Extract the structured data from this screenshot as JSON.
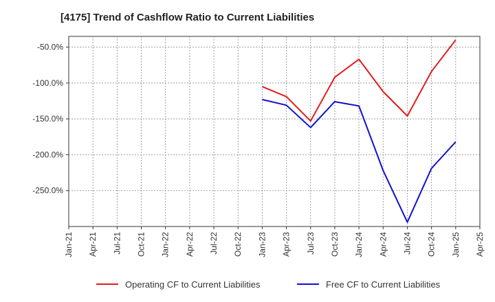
{
  "chart_data": {
    "type": "line",
    "title": "[4175]  Trend of Cashflow Ratio to Current Liabilities",
    "xlabel": "",
    "ylabel": "",
    "x_ticks": [
      "Jan-21",
      "Apr-21",
      "Jul-21",
      "Oct-21",
      "Jan-22",
      "Apr-22",
      "Jul-22",
      "Oct-22",
      "Jan-23",
      "Apr-23",
      "Jul-23",
      "Oct-23",
      "Jan-24",
      "Apr-24",
      "Jul-24",
      "Oct-24",
      "Jan-25",
      "Apr-25"
    ],
    "y_ticks": [
      -50,
      -100,
      -150,
      -200,
      -250
    ],
    "y_tick_labels": [
      "-50.0%",
      "-100.0%",
      "-150.0%",
      "-200.0%",
      "-250.0%"
    ],
    "ylim": [
      -300,
      -35
    ],
    "grid": true,
    "legend_position": "bottom",
    "x": [
      "Jan-23",
      "Apr-23",
      "Jul-23",
      "Oct-23",
      "Jan-24",
      "Apr-24",
      "Jul-24",
      "Oct-24",
      "Jan-25"
    ],
    "series": [
      {
        "name": "Operating CF to Current Liabilities",
        "color": "#e31a1c",
        "values": [
          -105,
          -119,
          -153,
          -92,
          -67,
          -112,
          -146,
          -84,
          -40
        ]
      },
      {
        "name": "Free CF to Current Liabilities",
        "color": "#1010d0",
        "values": [
          -123,
          -131,
          -162,
          -126,
          -132,
          -222,
          -294,
          -219,
          -182
        ]
      }
    ]
  }
}
